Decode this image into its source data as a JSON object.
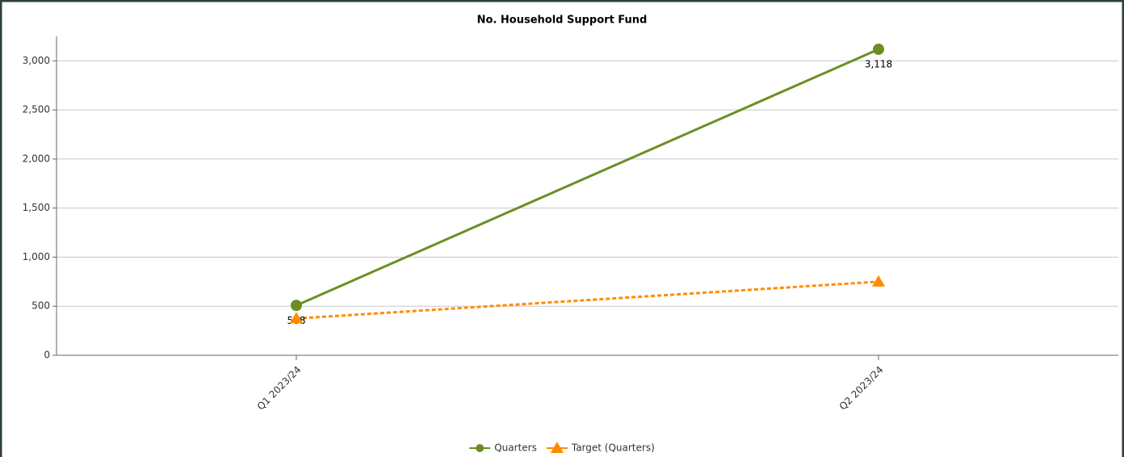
{
  "chart_data": {
    "type": "line",
    "title": "No. Household Support Fund",
    "categories": [
      "Q1 2023/24",
      "Q2 2023/24"
    ],
    "series": [
      {
        "name": "Quarters",
        "color": "#6b8e23",
        "marker": "circle",
        "dashed": false,
        "values": [
          508,
          3118
        ],
        "value_labels": [
          "508",
          "3,118"
        ]
      },
      {
        "name": "Target (Quarters)",
        "color": "#ff8c00",
        "marker": "triangle",
        "dashed": true,
        "values": [
          375,
          750
        ]
      }
    ],
    "ylim": [
      0,
      3250
    ],
    "yticks": [
      0,
      500,
      {
        "value": 1000,
        "label": "1,000"
      },
      {
        "value": 1500,
        "label": "1,500"
      },
      {
        "value": 2000,
        "label": "2,000"
      },
      {
        "value": 2500,
        "label": "2,500"
      },
      {
        "value": 3000,
        "label": "3,000"
      }
    ],
    "grid": true,
    "legend": "bottom"
  }
}
